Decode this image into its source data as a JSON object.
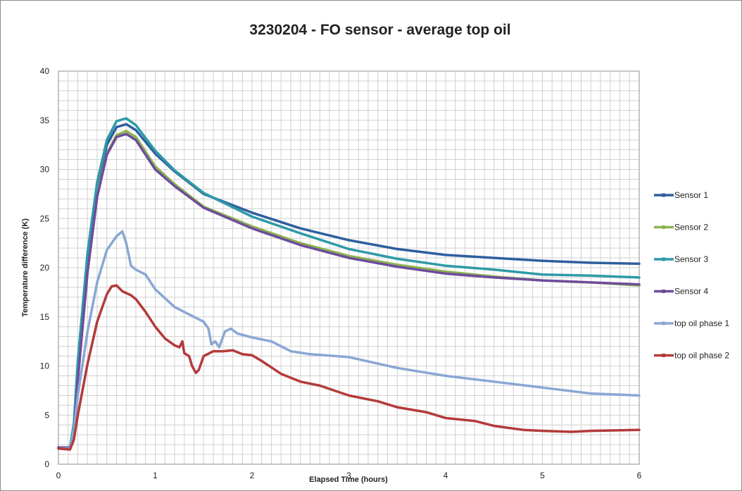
{
  "chart_data": {
    "type": "line",
    "title": "3230204 - FO sensor - average top oil",
    "xlabel": "Elapsed Time (hours)",
    "ylabel": "Temperature difference (K)",
    "xlim": [
      0,
      6
    ],
    "ylim": [
      0,
      40
    ],
    "x_ticks": [
      0,
      1,
      2,
      3,
      4,
      5,
      6
    ],
    "y_ticks": [
      0,
      5,
      10,
      15,
      20,
      25,
      30,
      35,
      40
    ],
    "grid": true,
    "legend_position": "right",
    "series": [
      {
        "name": "Sensor 1",
        "color": "#2e5f9e",
        "points": [
          [
            0,
            1.7
          ],
          [
            0.12,
            1.7
          ],
          [
            0.16,
            4
          ],
          [
            0.2,
            10
          ],
          [
            0.3,
            21
          ],
          [
            0.4,
            28
          ],
          [
            0.5,
            32.5
          ],
          [
            0.6,
            34.3
          ],
          [
            0.7,
            34.6
          ],
          [
            0.8,
            34
          ],
          [
            1.0,
            31.6
          ],
          [
            1.2,
            29.8
          ],
          [
            1.5,
            27.5
          ],
          [
            2.0,
            25.6
          ],
          [
            2.5,
            24
          ],
          [
            3.0,
            22.8
          ],
          [
            3.5,
            21.9
          ],
          [
            4.0,
            21.3
          ],
          [
            4.5,
            21
          ],
          [
            5.0,
            20.7
          ],
          [
            5.5,
            20.5
          ],
          [
            6.0,
            20.4
          ]
        ]
      },
      {
        "name": "Sensor 2",
        "color": "#8cb450",
        "points": [
          [
            0,
            1.7
          ],
          [
            0.12,
            1.7
          ],
          [
            0.16,
            3.5
          ],
          [
            0.2,
            9
          ],
          [
            0.3,
            20
          ],
          [
            0.4,
            27.5
          ],
          [
            0.5,
            31.6
          ],
          [
            0.6,
            33.5
          ],
          [
            0.7,
            33.9
          ],
          [
            0.8,
            33.3
          ],
          [
            1.0,
            30.3
          ],
          [
            1.2,
            28.5
          ],
          [
            1.5,
            26.2
          ],
          [
            2.0,
            24.2
          ],
          [
            2.5,
            22.5
          ],
          [
            3.0,
            21.2
          ],
          [
            3.5,
            20.3
          ],
          [
            4.0,
            19.6
          ],
          [
            4.5,
            19.1
          ],
          [
            5.0,
            18.7
          ],
          [
            5.5,
            18.5
          ],
          [
            6.0,
            18.2
          ]
        ]
      },
      {
        "name": "Sensor 3",
        "color": "#2e9aa8",
        "points": [
          [
            0,
            1.7
          ],
          [
            0.12,
            1.7
          ],
          [
            0.16,
            4.2
          ],
          [
            0.2,
            10.5
          ],
          [
            0.3,
            21.5
          ],
          [
            0.4,
            28.7
          ],
          [
            0.5,
            33
          ],
          [
            0.6,
            34.9
          ],
          [
            0.7,
            35.2
          ],
          [
            0.8,
            34.5
          ],
          [
            1.0,
            31.9
          ],
          [
            1.2,
            29.9
          ],
          [
            1.5,
            27.6
          ],
          [
            2.0,
            25.2
          ],
          [
            2.5,
            23.5
          ],
          [
            3.0,
            21.9
          ],
          [
            3.5,
            20.9
          ],
          [
            4.0,
            20.2
          ],
          [
            4.5,
            19.8
          ],
          [
            5.0,
            19.3
          ],
          [
            5.5,
            19.2
          ],
          [
            6.0,
            19.0
          ]
        ]
      },
      {
        "name": "Sensor 4",
        "color": "#6e4c9c",
        "points": [
          [
            0,
            1.7
          ],
          [
            0.12,
            1.7
          ],
          [
            0.16,
            3.2
          ],
          [
            0.2,
            8.5
          ],
          [
            0.3,
            19.5
          ],
          [
            0.4,
            27.2
          ],
          [
            0.5,
            31.5
          ],
          [
            0.6,
            33.3
          ],
          [
            0.7,
            33.6
          ],
          [
            0.8,
            33
          ],
          [
            1.0,
            30
          ],
          [
            1.2,
            28.3
          ],
          [
            1.5,
            26.1
          ],
          [
            2.0,
            24
          ],
          [
            2.5,
            22.3
          ],
          [
            3.0,
            21
          ],
          [
            3.5,
            20.1
          ],
          [
            4.0,
            19.4
          ],
          [
            4.5,
            19.0
          ],
          [
            5.0,
            18.7
          ],
          [
            5.5,
            18.5
          ],
          [
            6.0,
            18.3
          ]
        ]
      },
      {
        "name": "top oil phase 1",
        "color": "#8aa7d4",
        "points": [
          [
            0,
            1.6
          ],
          [
            0.12,
            1.6
          ],
          [
            0.16,
            3.5
          ],
          [
            0.2,
            7
          ],
          [
            0.3,
            13.5
          ],
          [
            0.4,
            18.5
          ],
          [
            0.5,
            21.8
          ],
          [
            0.6,
            23.2
          ],
          [
            0.66,
            23.7
          ],
          [
            0.7,
            22.5
          ],
          [
            0.75,
            20.2
          ],
          [
            0.8,
            19.8
          ],
          [
            0.9,
            19.3
          ],
          [
            1.0,
            17.8
          ],
          [
            1.2,
            16
          ],
          [
            1.4,
            15
          ],
          [
            1.5,
            14.5
          ],
          [
            1.55,
            13.8
          ],
          [
            1.58,
            12.2
          ],
          [
            1.62,
            12.5
          ],
          [
            1.66,
            11.9
          ],
          [
            1.72,
            13.5
          ],
          [
            1.78,
            13.8
          ],
          [
            1.85,
            13.3
          ],
          [
            2.0,
            12.9
          ],
          [
            2.2,
            12.5
          ],
          [
            2.4,
            11.5
          ],
          [
            2.6,
            11.2
          ],
          [
            3.0,
            10.9
          ],
          [
            3.5,
            9.8
          ],
          [
            4.0,
            9.0
          ],
          [
            4.5,
            8.4
          ],
          [
            5.0,
            7.8
          ],
          [
            5.5,
            7.2
          ],
          [
            6.0,
            7.0
          ]
        ]
      },
      {
        "name": "top oil phase 2",
        "color": "#b33a3a",
        "points": [
          [
            0,
            1.6
          ],
          [
            0.12,
            1.5
          ],
          [
            0.16,
            2.5
          ],
          [
            0.2,
            5
          ],
          [
            0.3,
            10.2
          ],
          [
            0.4,
            14.5
          ],
          [
            0.5,
            17.3
          ],
          [
            0.55,
            18.1
          ],
          [
            0.6,
            18.2
          ],
          [
            0.66,
            17.6
          ],
          [
            0.75,
            17.2
          ],
          [
            0.8,
            16.8
          ],
          [
            0.9,
            15.5
          ],
          [
            1.0,
            14
          ],
          [
            1.1,
            12.8
          ],
          [
            1.2,
            12.1
          ],
          [
            1.25,
            11.9
          ],
          [
            1.28,
            12.5
          ],
          [
            1.3,
            11.3
          ],
          [
            1.35,
            11.0
          ],
          [
            1.38,
            10
          ],
          [
            1.42,
            9.3
          ],
          [
            1.45,
            9.6
          ],
          [
            1.5,
            11.0
          ],
          [
            1.6,
            11.5
          ],
          [
            1.7,
            11.5
          ],
          [
            1.8,
            11.6
          ],
          [
            1.9,
            11.2
          ],
          [
            2.0,
            11.1
          ],
          [
            2.1,
            10.5
          ],
          [
            2.3,
            9.2
          ],
          [
            2.5,
            8.4
          ],
          [
            2.7,
            8.0
          ],
          [
            3.0,
            7.0
          ],
          [
            3.3,
            6.4
          ],
          [
            3.5,
            5.8
          ],
          [
            3.8,
            5.3
          ],
          [
            4.0,
            4.7
          ],
          [
            4.3,
            4.4
          ],
          [
            4.5,
            3.9
          ],
          [
            4.8,
            3.5
          ],
          [
            5.0,
            3.4
          ],
          [
            5.3,
            3.3
          ],
          [
            5.5,
            3.4
          ],
          [
            6.0,
            3.5
          ]
        ]
      }
    ]
  }
}
